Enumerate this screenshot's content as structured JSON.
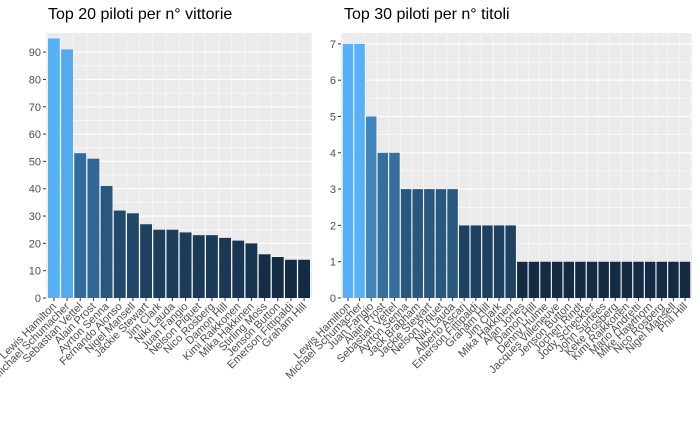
{
  "colors": {
    "panel_bg": "#ebebeb",
    "grid": "#ffffff",
    "bar_light": "#56b1f7",
    "bar_dark": "#132b43"
  },
  "chart_data": [
    {
      "type": "bar",
      "title": "Top 20 piloti per n° vittorie",
      "xlabel": "",
      "ylabel": "",
      "ylim": [
        0,
        97
      ],
      "yticks": [
        0,
        10,
        20,
        30,
        40,
        50,
        60,
        70,
        80,
        90
      ],
      "grid": true,
      "color_scale": "continuous, value-mapped (dark navy = low, light blue = high)",
      "categories": [
        "Lewis Hamilton",
        "Michael Schumacher",
        "Sebastian Vettel",
        "Alain Prost",
        "Ayrton Senna",
        "Fernando Alonso",
        "Nigel Mansell",
        "Jackie Stewart",
        "Jim Clark",
        "Niki Lauda",
        "Juan Fangio",
        "Nelson Piquet",
        "Nico Rosberg",
        "Damon Hill",
        "Kimi Raikkonen",
        "Mika Hakkinen",
        "Stirling Moss",
        "Jenson Button",
        "Emerson Fittipaldi",
        "Graham Hill"
      ],
      "values": [
        95,
        91,
        53,
        51,
        41,
        32,
        31,
        27,
        25,
        25,
        24,
        23,
        23,
        22,
        21,
        20,
        16,
        15,
        14,
        14
      ]
    },
    {
      "type": "bar",
      "title": "Top 30 piloti per n° titoli",
      "xlabel": "",
      "ylabel": "",
      "ylim": [
        0,
        7.3
      ],
      "yticks": [
        0,
        1,
        2,
        3,
        4,
        5,
        6,
        7
      ],
      "grid": true,
      "color_scale": "continuous, value-mapped (dark navy = low, light blue = high)",
      "categories": [
        "Lewis Hamilton",
        "Michael Schumacher",
        "Juan Fangio",
        "Alain Prost",
        "Sebastian Vettel",
        "Ayrton Senna",
        "Jack Brabham",
        "Jackie Stewart",
        "Nelson Piquet",
        "Niki Lauda",
        "Alberto Ascari",
        "Emerson Fittipaldi",
        "Graham Hill",
        "Jim Clark",
        "Mika Hakkinen",
        "Alan Jones",
        "Damon Hill",
        "Denny Hulme",
        "Jacques Villeneuve",
        "Jenson Button",
        "Jochen Rindt",
        "Jody Scheckter",
        "John Surtees",
        "Keke Rosberg",
        "Kimi Raikkonen",
        "Mario Andretti",
        "Mike Hawthorn",
        "Nico Rosberg",
        "Nigel Mansell",
        "Phil Hill"
      ],
      "values": [
        7,
        7,
        5,
        4,
        4,
        3,
        3,
        3,
        3,
        3,
        2,
        2,
        2,
        2,
        2,
        1,
        1,
        1,
        1,
        1,
        1,
        1,
        1,
        1,
        1,
        1,
        1,
        1,
        1,
        1
      ]
    }
  ]
}
